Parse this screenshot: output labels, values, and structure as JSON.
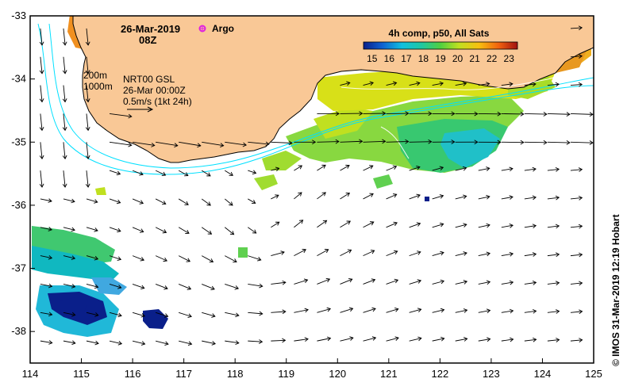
{
  "header": {
    "date": "26-Mar-2019",
    "time": "08Z",
    "argo_label": "Argo"
  },
  "colorbar": {
    "title": "4h comp, p50, All Sats",
    "ticks": [
      "15",
      "16",
      "17",
      "18",
      "19",
      "20",
      "21",
      "22",
      "23"
    ],
    "value_range": [
      14.5,
      23.5
    ]
  },
  "legend": {
    "contour_1": "200m",
    "contour_2": "1000m",
    "product": "NRT00 GSL",
    "product_time": "26-Mar 00:00Z",
    "vector_scale": "0.5m/s (1kt 24h)"
  },
  "axes": {
    "lon_ticks": [
      "114",
      "115",
      "116",
      "117",
      "118",
      "119",
      "120",
      "121",
      "122",
      "123",
      "124",
      "125"
    ],
    "lat_ticks": [
      "-33",
      "-34",
      "-35",
      "-36",
      "-37",
      "-38"
    ],
    "lon_range": [
      114,
      125
    ],
    "lat_range": [
      -33,
      -38.5
    ]
  },
  "credit": "© IMOS 31-Mar-2019 12:19 Hobart",
  "colors": {
    "land": "#f9c896",
    "bathy_line": "#00e0ff",
    "vector": "#000000"
  }
}
